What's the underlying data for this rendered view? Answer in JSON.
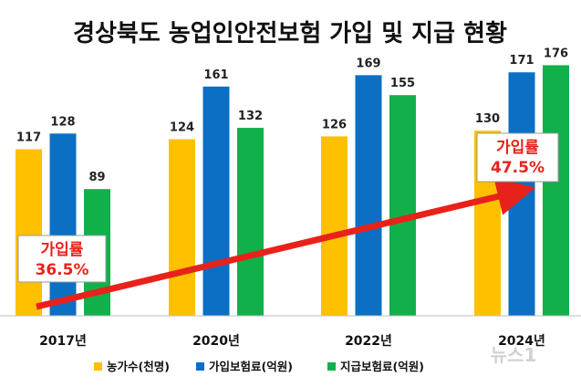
{
  "chart_data": {
    "type": "bar",
    "title": "경상북도 농업인안전보험 가입 및 지급 현황",
    "categories": [
      "2017년",
      "2020년",
      "2022년",
      "2024년"
    ],
    "series": [
      {
        "name": "농가수(천명)",
        "color": "#ffc000",
        "values": [
          117,
          124,
          126,
          130
        ]
      },
      {
        "name": "가입보험료(억원)",
        "color": "#0b6fc4",
        "values": [
          128,
          161,
          169,
          171
        ]
      },
      {
        "name": "지급보험료(억원)",
        "color": "#12b04a",
        "values": [
          89,
          132,
          155,
          176
        ]
      }
    ],
    "ylim": [
      0,
      200
    ],
    "annotations": [
      {
        "label": "가입률",
        "value": "36.5%",
        "category": "2017년"
      },
      {
        "label": "가입률",
        "value": "47.5%",
        "category": "2024년"
      }
    ],
    "arrow_color": "#e8221b"
  },
  "watermark": "뉴스1"
}
